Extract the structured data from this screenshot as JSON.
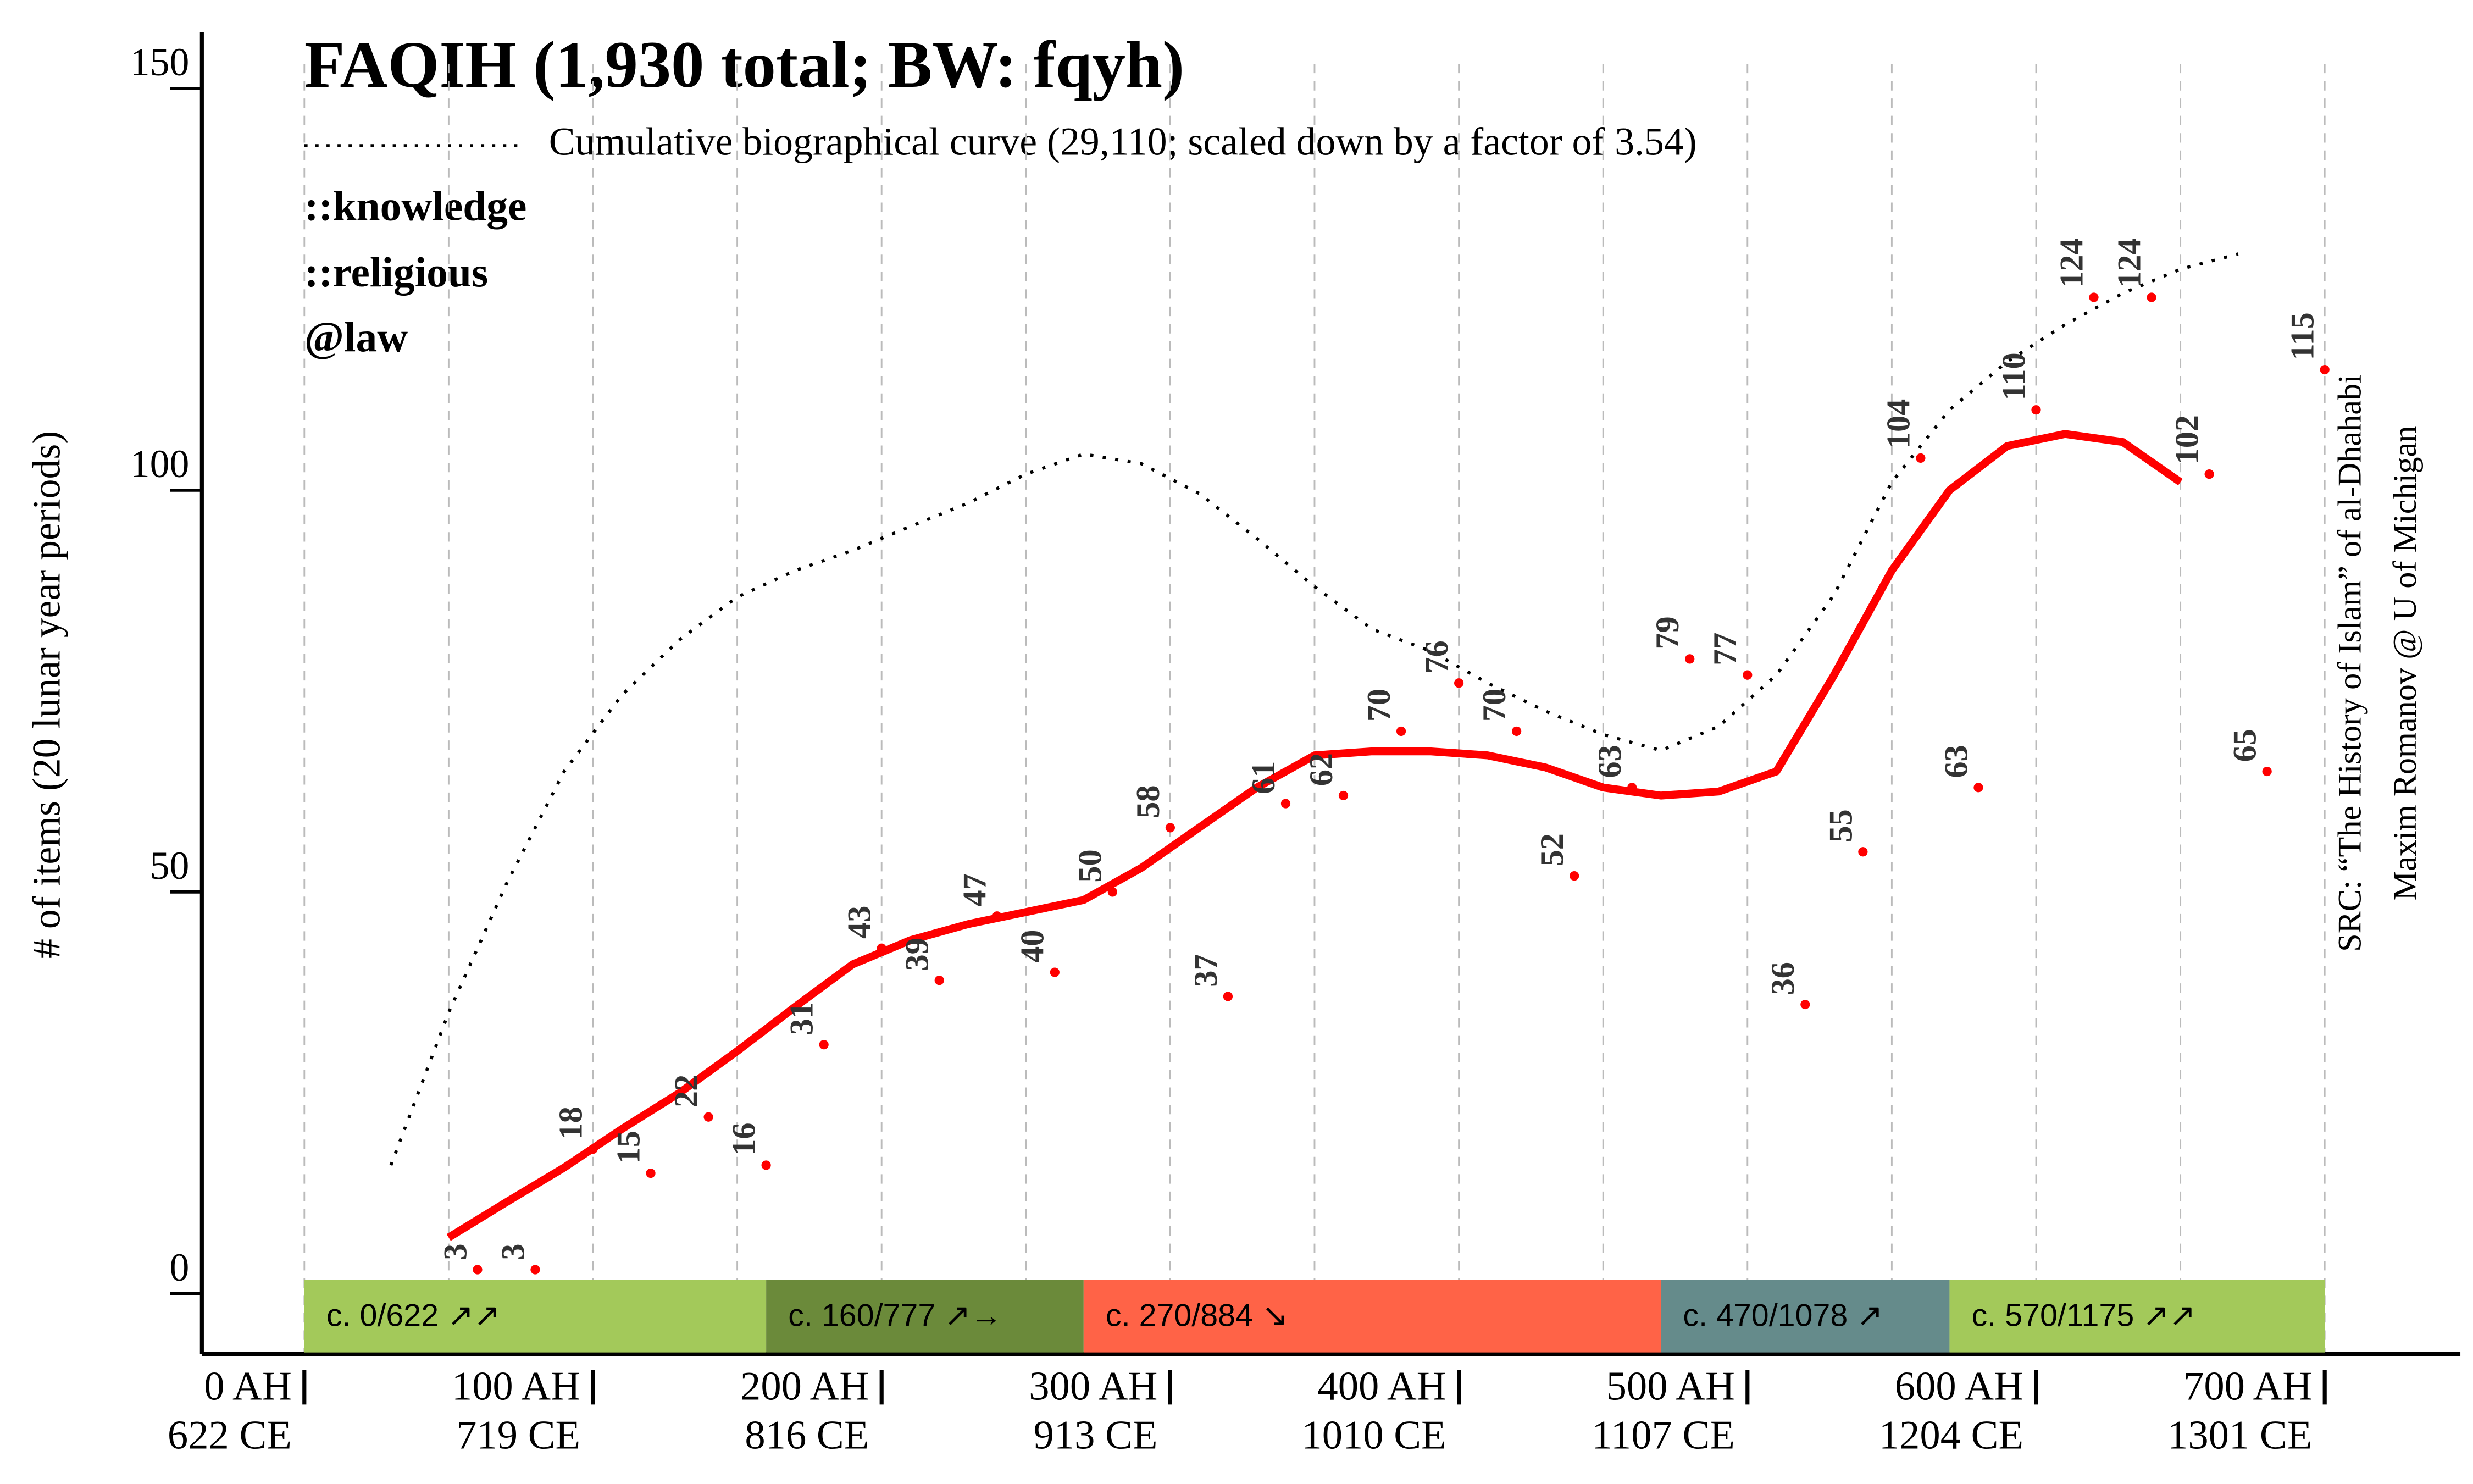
{
  "chart_data": {
    "type": "line",
    "title": "FAQIH (1,930 total; BW: fqyh)",
    "tags": [
      "::knowledge",
      "::religious",
      "@law"
    ],
    "y_label": "# of items (20 lunar year periods)",
    "source": [
      "SRC: “The History of Islam” of al-Dhahabi",
      "Maxim Romanov @ U of Michigan"
    ],
    "xlim": [
      -35.5,
      747
    ],
    "ylim": [
      -7.5,
      157
    ],
    "yticks": [
      0,
      50,
      100,
      150
    ],
    "xticks": [
      {
        "value": 0,
        "label": "0 AH"
      },
      {
        "value": 100,
        "label": "100 AH"
      },
      {
        "value": 200,
        "label": "200 AH"
      },
      {
        "value": 300,
        "label": "300 AH"
      },
      {
        "value": 400,
        "label": "400 AH"
      },
      {
        "value": 500,
        "label": "500 AH"
      },
      {
        "value": 600,
        "label": "600 AH"
      },
      {
        "value": 700,
        "label": "700 AH"
      }
    ],
    "xtick_ce_labels": [
      "622 CE",
      "719 CE",
      "816 CE",
      "913 CE",
      "1010 CE",
      "1107 CE",
      "1204 CE",
      "1301 CE"
    ],
    "xgrid": [
      0,
      50,
      100,
      150,
      200,
      250,
      300,
      350,
      400,
      450,
      500,
      550,
      600,
      650,
      700
    ],
    "points": {
      "color": "#ff0000",
      "x": [
        60,
        80,
        100,
        120,
        140,
        160,
        180,
        200,
        220,
        240,
        260,
        280,
        300,
        320,
        340,
        360,
        380,
        400,
        420,
        440,
        460,
        480,
        500,
        520,
        540,
        560,
        580,
        600,
        620,
        640,
        660,
        680,
        700
      ],
      "values": [
        3,
        3,
        18,
        15,
        22,
        16,
        31,
        43,
        39,
        47,
        40,
        50,
        58,
        37,
        61,
        62,
        70,
        76,
        70,
        52,
        63,
        79,
        77,
        36,
        55,
        104,
        63,
        110,
        124,
        124,
        102,
        65,
        115
      ]
    },
    "trend": {
      "color": "#ff0000",
      "x": [
        50,
        70,
        90,
        110,
        130,
        150,
        170,
        190,
        210,
        230,
        250,
        270,
        290,
        310,
        330,
        350,
        370,
        390,
        410,
        430,
        450,
        470,
        490,
        510,
        530,
        550,
        570,
        590,
        610,
        630,
        650
      ],
      "values": [
        7,
        11.4,
        15.7,
        20.5,
        25,
        30.2,
        35.7,
        41,
        44,
        46,
        47.5,
        49,
        53,
        58,
        63,
        67,
        67.5,
        67.5,
        67,
        65.5,
        63,
        62,
        62.5,
        65,
        77,
        90,
        100,
        105.5,
        107,
        106,
        101
      ]
    },
    "cumulative": {
      "label": "Cumulative biographical curve (29,110; scaled down by a factor of 3.54)",
      "x": [
        30,
        50,
        70,
        90,
        110,
        130,
        150,
        170,
        190,
        210,
        230,
        250,
        270,
        290,
        310,
        330,
        350,
        370,
        390,
        410,
        430,
        450,
        470,
        490,
        510,
        530,
        550,
        570,
        590,
        610,
        630,
        650,
        670
      ],
      "values": [
        16,
        35,
        51,
        65,
        74.5,
        81.4,
        86.7,
        90,
        92.5,
        95.5,
        98.4,
        102,
        104.5,
        103.3,
        99.6,
        94,
        88,
        82.7,
        80,
        76,
        72.5,
        69.6,
        67.6,
        70.6,
        77,
        87,
        101,
        110,
        116,
        120.6,
        124.5,
        127.5,
        129.4
      ]
    },
    "periods": [
      {
        "label": "c. 0/622 ↗↗",
        "start": 0,
        "end": 160,
        "color": "#a3c95a"
      },
      {
        "label": "c. 160/777 ↗→",
        "start": 160,
        "end": 270,
        "color": "#6b8a3a"
      },
      {
        "label": "c. 270/884 ↘",
        "start": 270,
        "end": 470,
        "color": "#ff6347"
      },
      {
        "label": "c. 470/1078 ↗",
        "start": 470,
        "end": 570,
        "color": "#658b8b"
      },
      {
        "label": "c. 570/1175 ↗↗",
        "start": 570,
        "end": 700,
        "color": "#a3c95a"
      }
    ]
  }
}
